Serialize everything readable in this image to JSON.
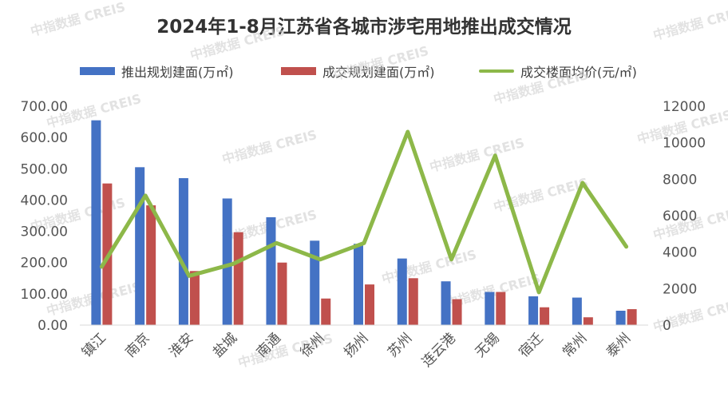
{
  "watermark": "中指数据 CREIS",
  "chart_data": {
    "type": "bar",
    "title": "2024年1-8月江苏省各城市涉宅用地推出成交情况",
    "categories": [
      "镇江",
      "南京",
      "淮安",
      "盐城",
      "南通",
      "徐州",
      "扬州",
      "苏州",
      "连云港",
      "无锡",
      "宿迁",
      "常州",
      "泰州"
    ],
    "series": [
      {
        "name": "推出规划建面(万㎡)",
        "type": "bar",
        "axis": "left",
        "color": "#4472C4",
        "values": [
          655,
          505,
          470,
          405,
          345,
          270,
          260,
          213,
          140,
          106,
          92,
          88,
          46
        ]
      },
      {
        "name": "成交规划建面(万㎡)",
        "type": "bar",
        "axis": "left",
        "color": "#C0504D",
        "values": [
          453,
          383,
          173,
          297,
          200,
          85,
          130,
          150,
          83,
          106,
          57,
          25,
          51
        ]
      },
      {
        "name": "成交楼面均价(元/㎡)",
        "type": "line",
        "axis": "right",
        "color": "#8DB849",
        "values": [
          3200,
          7100,
          2700,
          3350,
          4500,
          3600,
          4500,
          10600,
          3600,
          9300,
          1800,
          7800,
          4300
        ]
      }
    ],
    "y_left": {
      "min": 0,
      "max": 700,
      "ticks": [
        "0.00",
        "100.00",
        "200.00",
        "300.00",
        "400.00",
        "500.00",
        "600.00",
        "700.00"
      ]
    },
    "y_right": {
      "min": 0,
      "max": 12000,
      "ticks": [
        "0",
        "2000",
        "4000",
        "6000",
        "8000",
        "10000",
        "12000"
      ]
    },
    "legend_position": "top",
    "grid": false
  }
}
